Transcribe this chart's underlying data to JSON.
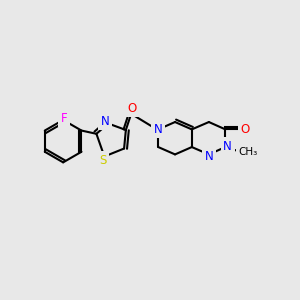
{
  "background_color": "#e8e8e8",
  "bond_color": "#000000",
  "atom_colors": {
    "N": "#0000ff",
    "O": "#ff0000",
    "S": "#cccc00",
    "F": "#ff00ff",
    "C": "#000000"
  },
  "font_size": 8.5
}
